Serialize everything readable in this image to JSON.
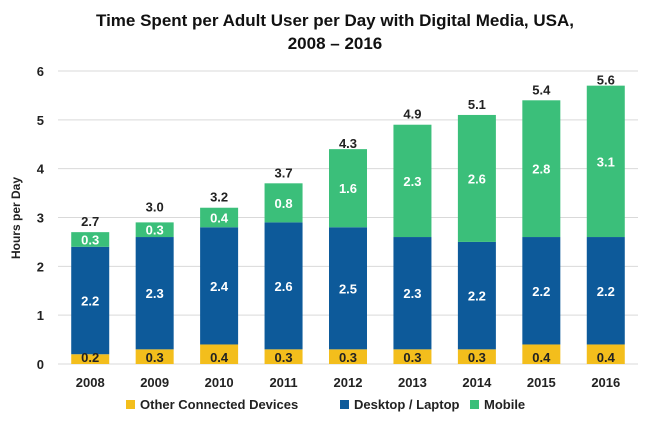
{
  "chart_data": {
    "type": "bar",
    "stacked": true,
    "title_line1": "Time Spent per Adult User per Day with Digital Media, USA,",
    "title_line2": "2008 – 2016",
    "ylabel": "Hours per Day",
    "xlabel": "",
    "ylim": [
      0,
      6
    ],
    "yticks": [
      0,
      1,
      2,
      3,
      4,
      5,
      6
    ],
    "grid": true,
    "legend_position": "bottom",
    "categories": [
      "2008",
      "2009",
      "2010",
      "2011",
      "2012",
      "2013",
      "2014",
      "2015",
      "2016"
    ],
    "series": [
      {
        "name": "Other Connected Devices",
        "color": "#f3be1c",
        "label_color": "#222222",
        "values": [
          0.2,
          0.3,
          0.4,
          0.3,
          0.3,
          0.3,
          0.3,
          0.4,
          0.4
        ],
        "labels": [
          "0.2",
          "0.3",
          "0.4",
          "0.3",
          "0.3",
          "0.3",
          "0.3",
          "0.4",
          "0.4"
        ]
      },
      {
        "name": "Desktop / Laptop",
        "color": "#0d5a9a",
        "label_color": "#ffffff",
        "values": [
          2.2,
          2.3,
          2.4,
          2.6,
          2.5,
          2.3,
          2.2,
          2.2,
          2.2
        ],
        "labels": [
          "2.2",
          "2.3",
          "2.4",
          "2.6",
          "2.5",
          "2.3",
          "2.2",
          "2.2",
          "2.2"
        ]
      },
      {
        "name": "Mobile",
        "color": "#3bbf7a",
        "label_color": "#ffffff",
        "values": [
          0.3,
          0.3,
          0.4,
          0.8,
          1.6,
          2.3,
          2.6,
          2.8,
          3.1
        ],
        "labels": [
          "0.3",
          "0.3",
          "0.4",
          "0.8",
          "1.6",
          "2.3",
          "2.6",
          "2.8",
          "3.1"
        ]
      }
    ],
    "totals": [
      2.7,
      3.0,
      3.2,
      3.7,
      4.3,
      4.9,
      5.1,
      5.4,
      5.6
    ],
    "total_labels": [
      "2.7",
      "3.0",
      "3.2",
      "3.7",
      "4.3",
      "4.9",
      "5.1",
      "5.4",
      "5.6"
    ]
  }
}
